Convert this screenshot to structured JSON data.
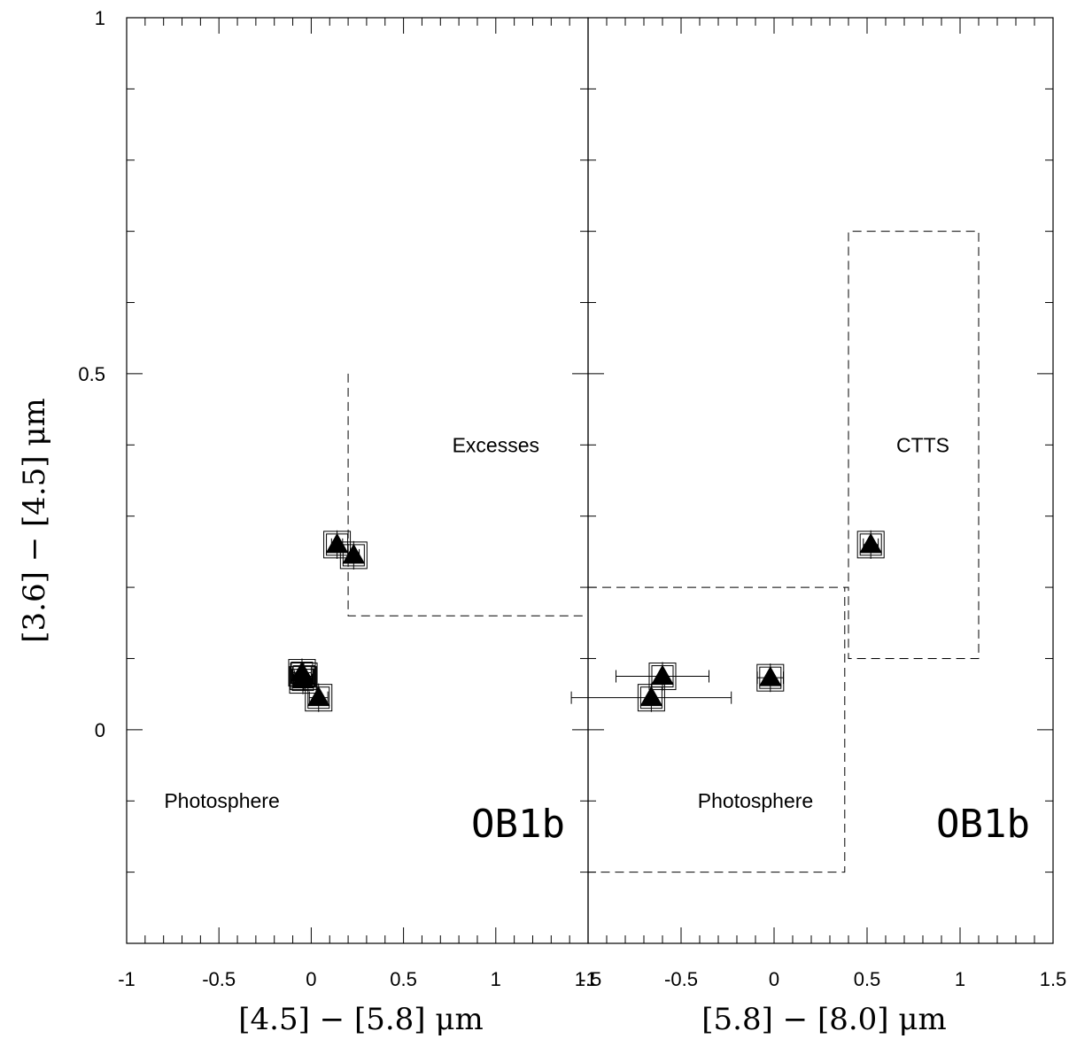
{
  "chart_data": [
    {
      "type": "scatter",
      "xlabel": "[4.5] − [5.8] μm",
      "ylabel": "[3.6] − [4.5] μm",
      "xlim": [
        -1,
        1.5
      ],
      "ylim": [
        -0.3,
        1
      ],
      "x_ticks": [
        "-1",
        "-0.5",
        "0",
        "0.5",
        "1",
        "1.5"
      ],
      "y_ticks": [
        "0",
        "0.5",
        "1"
      ],
      "grid": false,
      "points": [
        {
          "x": 0.14,
          "y": 0.26,
          "xerr": 0.03,
          "yerr": 0.02
        },
        {
          "x": 0.23,
          "y": 0.245,
          "xerr": 0.03,
          "yerr": 0.02
        },
        {
          "x": -0.04,
          "y": 0.075,
          "xerr": 0.05,
          "yerr": 0.02
        },
        {
          "x": -0.05,
          "y": 0.08,
          "xerr": 0.05,
          "yerr": 0.02
        },
        {
          "x": -0.045,
          "y": 0.07,
          "xerr": 0.05,
          "yerr": 0.02
        },
        {
          "x": 0.04,
          "y": 0.045,
          "xerr": 0.05,
          "yerr": 0.02
        }
      ],
      "region_boundaries": [
        {
          "points": [
            [
              0.2,
              0.5
            ],
            [
              0.2,
              0.16
            ],
            [
              1.5,
              0.16
            ]
          ]
        }
      ],
      "region_labels": [
        {
          "text": "Excesses",
          "x": 1.0,
          "y": 0.4
        },
        {
          "text": "Photosphere",
          "x": -0.1,
          "y": -0.1
        }
      ],
      "panel_label": "OB1b"
    },
    {
      "type": "scatter",
      "xlabel": "[5.8] − [8.0] μm",
      "ylabel": "[3.6] − [4.5] μm",
      "xlim": [
        -1,
        1.5
      ],
      "ylim": [
        -0.3,
        1
      ],
      "x_ticks": [
        "-1",
        "-0.5",
        "0",
        "0.5",
        "1",
        "1.5"
      ],
      "grid": false,
      "points": [
        {
          "x": -0.6,
          "y": 0.075,
          "xerr": 0.25,
          "yerr": 0.02
        },
        {
          "x": -0.66,
          "y": 0.045,
          "xerr": 0.43,
          "yerr": 0.02
        },
        {
          "x": -0.02,
          "y": 0.073,
          "xerr": 0.07,
          "yerr": 0.02
        },
        {
          "x": 0.52,
          "y": 0.26,
          "xerr": 0.04,
          "yerr": 0.02
        }
      ],
      "region_boundaries": [
        {
          "points": [
            [
              -1,
              0.2
            ],
            [
              0.4,
              0.2
            ],
            [
              0.4,
              0.1
            ],
            [
              1.1,
              0.1
            ],
            [
              1.1,
              0.7
            ],
            [
              0.4,
              0.7
            ],
            [
              0.4,
              0.2
            ]
          ]
        },
        {
          "points": [
            [
              -1,
              0.2
            ],
            [
              -1,
              -0.2
            ],
            [
              0.38,
              -0.2
            ],
            [
              0.38,
              0.2
            ]
          ]
        }
      ],
      "region_labels": [
        {
          "text": "CTTS",
          "x": 0.8,
          "y": 0.4
        },
        {
          "text": "Photosphere",
          "x": -0.1,
          "y": -0.1
        }
      ],
      "panel_label": "OB1b"
    }
  ]
}
